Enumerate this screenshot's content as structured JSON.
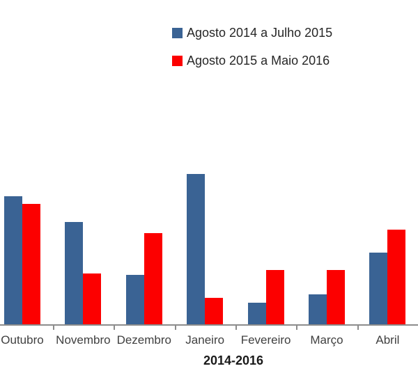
{
  "chart_data": {
    "type": "bar",
    "title": "",
    "categories": [
      "Outubro",
      "Novembro",
      "Dezembro",
      "Janeiro",
      "Fevereiro",
      "Março",
      "Abril"
    ],
    "series": [
      {
        "name": "Agosto 2014 a Julho 2015",
        "color": "#3A6394",
        "values": [
          184,
          147,
          71,
          216,
          31,
          43,
          103
        ]
      },
      {
        "name": "Agosto 2015 a Maio 2016",
        "color": "#FC0000",
        "values": [
          173,
          73,
          131,
          38,
          78,
          78,
          136
        ]
      }
    ],
    "xlabel": "2014-2016",
    "ylabel": "",
    "value_units": "relative height (no y-axis or gridlines shown in chart)",
    "ylim": [
      0,
      230
    ],
    "grid": false,
    "y_axis_visible": false,
    "legend_position": "top-center",
    "axis_color": "#8C8C8C",
    "tick_label_color": "#404040",
    "legend_text_color": "#262626",
    "axis_title_color": "#1A1A1A",
    "background_color": "#FFFFFF"
  }
}
